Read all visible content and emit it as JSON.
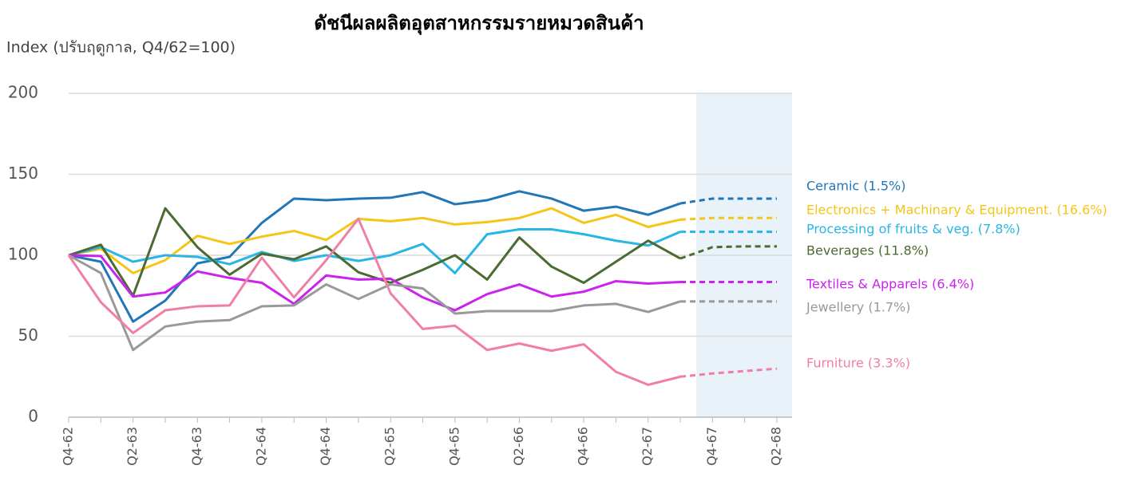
{
  "chart_data": {
    "type": "line",
    "title": "ดัชนีผลผลิตอุตสาหกรรมรายหมวดสินค้า",
    "y_label": "Index (ปรับฤดูกาล, Q4/62=100)",
    "categories": [
      "Q4-62",
      null,
      "Q2-63",
      null,
      "Q4-63",
      null,
      "Q2-64",
      null,
      "Q4-64",
      null,
      "Q2-65",
      null,
      "Q4-65",
      null,
      "Q2-66",
      null,
      "Q4-66",
      null,
      "Q2-67",
      null,
      "Q4-67",
      null,
      "Q2-68"
    ],
    "ylim": [
      0,
      200
    ],
    "yticks": [
      0,
      50,
      100,
      150,
      200
    ],
    "grid": true,
    "dashed_from_index": 19,
    "series": [
      {
        "name": "Ceramic (1.5%)",
        "color": "#2176b8",
        "values": [
          100,
          96,
          59,
          72,
          95,
          99,
          120,
          135,
          134,
          135,
          135.5,
          139,
          131.5,
          134,
          139.5,
          135,
          127.5,
          130,
          125,
          132,
          135,
          135,
          135
        ]
      },
      {
        "name": "Electronics + Machinary & Equipment. (16.6%)",
        "color": "#f5c518",
        "values": [
          100,
          104,
          89,
          97,
          112,
          107,
          111.5,
          115,
          109.5,
          122.5,
          121,
          123,
          119,
          120.5,
          123,
          129,
          120,
          125,
          117.5,
          122,
          123,
          123,
          123
        ]
      },
      {
        "name": "Processing of fruits & veg. (7.8%)",
        "color": "#29b6e6",
        "values": [
          100,
          105,
          96,
          100,
          99,
          94.5,
          102,
          96.5,
          100,
          96.5,
          100,
          107,
          89,
          113,
          116,
          116,
          113,
          109,
          106,
          114.5,
          114.5,
          114.5,
          114.5
        ]
      },
      {
        "name": "Beverages (11.8%)",
        "color": "#4a6b32",
        "values": [
          100,
          106.5,
          75,
          129,
          105,
          88,
          101,
          97.5,
          105.5,
          89.5,
          83,
          91,
          100,
          85,
          111,
          93,
          83,
          96,
          109,
          98,
          105,
          105.5,
          105.5
        ]
      },
      {
        "name": "Textiles & Apparels (6.4%)",
        "color": "#cc22ee",
        "values": [
          100,
          99.5,
          74.5,
          77,
          90,
          86,
          83,
          70,
          87.5,
          85,
          85.5,
          74,
          66,
          76,
          82,
          74.5,
          77.5,
          84,
          82.5,
          83.5,
          83.5,
          83.5,
          83.5
        ]
      },
      {
        "name": "Jewellery (1.7%)",
        "color": "#999999",
        "values": [
          100,
          89,
          41.5,
          56,
          59,
          60,
          68.5,
          69,
          82,
          73,
          82,
          79.5,
          64,
          65.5,
          65.5,
          65.5,
          69,
          70,
          65,
          71.5,
          71.5,
          71.5,
          71.5
        ]
      },
      {
        "name": "Furniture (3.3%)",
        "color": "#f07fa5",
        "values": [
          100,
          71,
          52,
          66,
          68.5,
          69,
          98.5,
          74,
          97,
          122.5,
          76.5,
          54.5,
          56.5,
          41.5,
          45.5,
          41,
          45,
          28,
          20,
          25,
          27,
          28.5,
          30
        ]
      }
    ]
  }
}
